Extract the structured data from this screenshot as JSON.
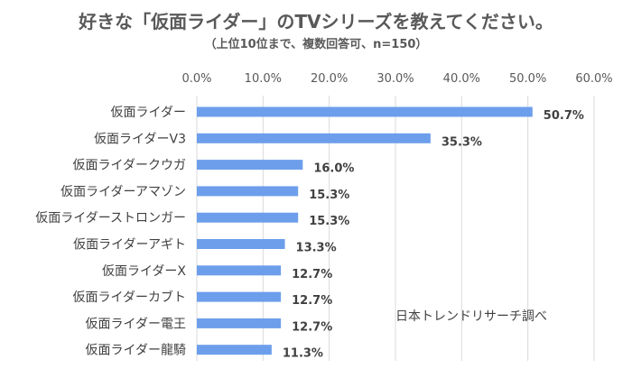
{
  "chart_data": {
    "type": "bar",
    "orientation": "horizontal",
    "title": "好きな「仮面ライダー」のTVシリーズを教えてください。",
    "subtitle": "（上位10位まで、複数回答可、n=150）",
    "categories": [
      "仮面ライダー",
      "仮面ライダーV3",
      "仮面ライダークウガ",
      "仮面ライダーアマゾン",
      "仮面ライダーストロンガー",
      "仮面ライダーアギト",
      "仮面ライダーX",
      "仮面ライダーカブト",
      "仮面ライダー電王",
      "仮面ライダー龍騎"
    ],
    "values": [
      50.7,
      35.3,
      16.0,
      15.3,
      15.3,
      13.3,
      12.7,
      12.7,
      12.7,
      11.3
    ],
    "value_labels": [
      "50.7%",
      "35.3%",
      "16.0%",
      "15.3%",
      "15.3%",
      "13.3%",
      "12.7%",
      "12.7%",
      "12.7%",
      "11.3%"
    ],
    "xlim": [
      0,
      60
    ],
    "ticks": [
      0,
      10,
      20,
      30,
      40,
      50,
      60
    ],
    "tick_labels": [
      "0.0%",
      "10.0%",
      "20.0%",
      "30.0%",
      "40.0%",
      "50.0%",
      "60.0%"
    ],
    "axis_position": "top",
    "grid": true,
    "bar_color": "#6d9eeb",
    "grid_color": "#d9d9d9",
    "source_note": "日本トレンドリサーチ調べ"
  }
}
